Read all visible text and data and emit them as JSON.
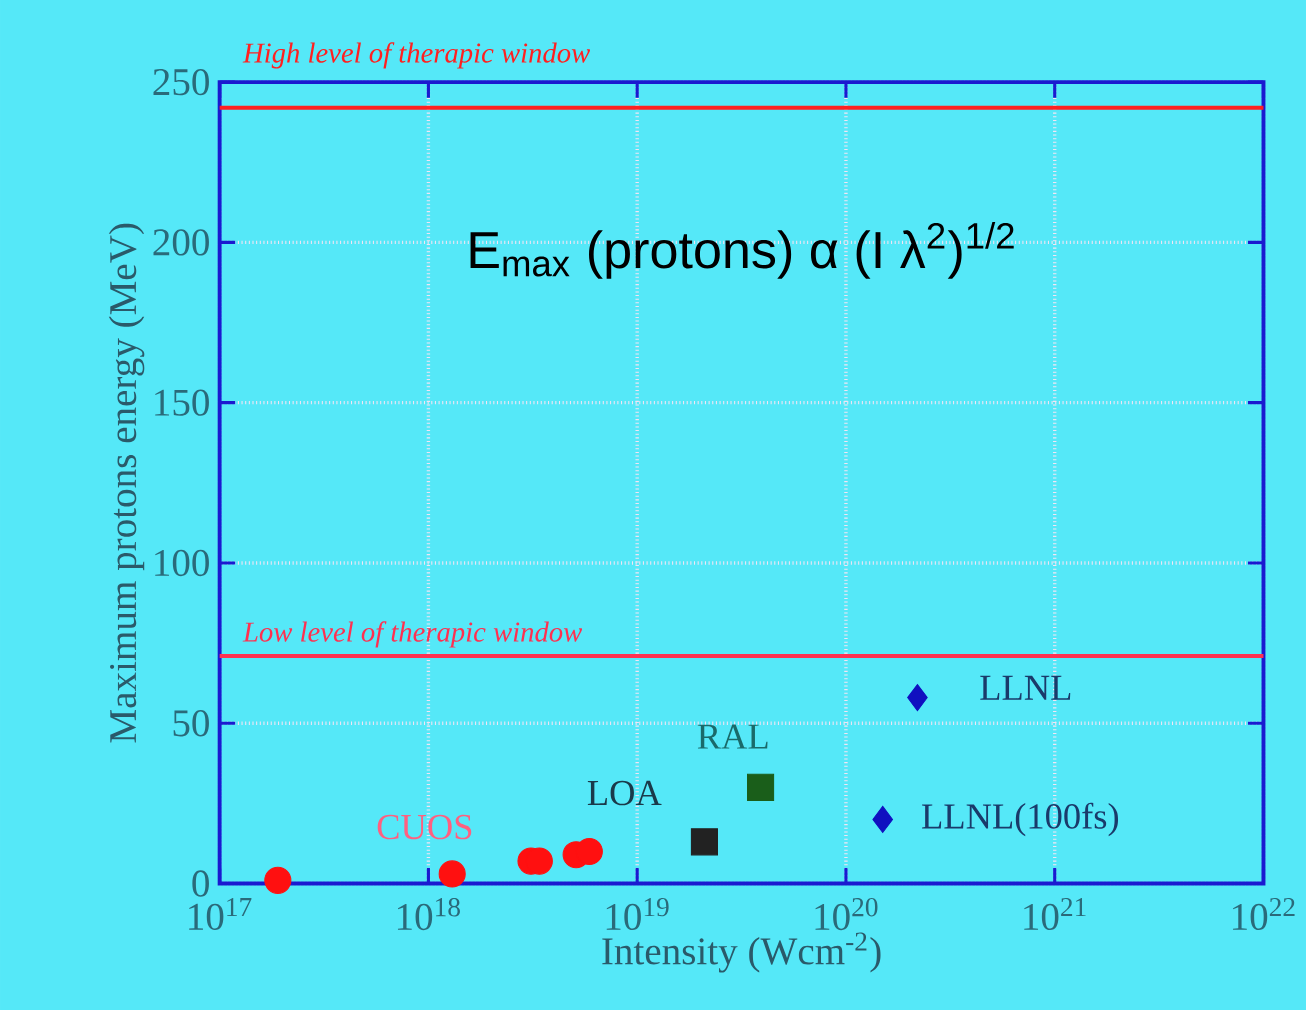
{
  "chart_data": {
    "type": "scatter",
    "title": "E$_{max}$ (protons)  α (I λ$^{2}$)$^{1/2}$",
    "xlabel": "Intensity (Wcm$^{-2}$)",
    "ylabel": "Maximum protons energy (MeV)",
    "log": "x",
    "grid": true,
    "xlim": [
      1e+17,
      1e+22
    ],
    "ylim": [
      0,
      250
    ],
    "xticks": [
      {
        "value": 1e+17,
        "label": "10$^{17}$"
      },
      {
        "value": 1e+18,
        "label": "10$^{18}$"
      },
      {
        "value": 1e+19,
        "label": "10$^{19}$"
      },
      {
        "value": 1e+20,
        "label": "10$^{20}$"
      },
      {
        "value": 1e+21,
        "label": "10$^{21}$"
      },
      {
        "value": 1e+22,
        "label": "10$^{22}$"
      }
    ],
    "yticks": [
      0,
      50,
      100,
      150,
      200,
      250
    ],
    "series": [
      {
        "color": "#ff1010",
        "marker": "circle",
        "x": [
          1.9e+17,
          1.3e+18,
          3.1e+18,
          3.4e+18,
          5.1e+18,
          5.9e+18
        ],
        "values": [
          1,
          3,
          7,
          7,
          9,
          10
        ]
      },
      {
        "color": "#222222",
        "marker": "square",
        "x": [
          2.1e+19
        ],
        "values": [
          13
        ]
      },
      {
        "color": "#1a5e1a",
        "marker": "square",
        "x": [
          3.9e+19
        ],
        "values": [
          30
        ]
      },
      {
        "color": "#1010c0",
        "marker": "diamond",
        "x": [
          2.2e+20,
          1.5e+20
        ],
        "values": [
          58,
          20
        ]
      }
    ],
    "ref_lines": [
      {
        "axis": "y",
        "value": 242,
        "label": "High level of therapic window",
        "color": "#ff2020"
      },
      {
        "axis": "y",
        "value": 71,
        "label": "Low level of therapic window",
        "color": "#ff3050"
      }
    ],
    "annotations": [
      {
        "text": "CUOS",
        "x": 1.3e+18,
        "y": 3
      },
      {
        "text": "LOA",
        "x": 2.1e+19,
        "y": 13
      },
      {
        "text": "RAL",
        "x": 3.9e+19,
        "y": 30
      },
      {
        "text": "LLNL",
        "x": 2.2e+20,
        "y": 58
      },
      {
        "text": "LLNL(100fs)",
        "x": 1.5e+20,
        "y": 20
      }
    ]
  }
}
